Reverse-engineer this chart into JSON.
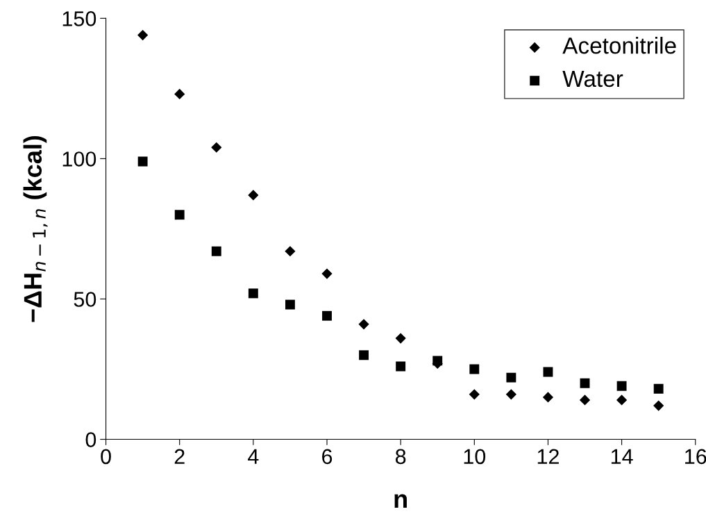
{
  "chart_data": {
    "type": "scatter",
    "xlabel": "n",
    "ylabel": "−ΔH$_{n−1,n}$ (kcal)",
    "x": [
      1,
      2,
      3,
      4,
      5,
      6,
      7,
      8,
      9,
      10,
      11,
      12,
      13,
      14,
      15
    ],
    "series": [
      {
        "name": "Acetonitrile",
        "color": "#000000",
        "marker": "diamond",
        "values": [
          144,
          123,
          104,
          87,
          67,
          59,
          41,
          36,
          27,
          16,
          16,
          15,
          14,
          14,
          12
        ]
      },
      {
        "name": "Water",
        "color": "#000000",
        "marker": "square",
        "values": [
          99,
          80,
          67,
          52,
          48,
          44,
          30,
          26,
          28,
          25,
          22,
          24,
          20,
          19,
          18
        ]
      }
    ],
    "xlim": [
      0,
      16
    ],
    "xticks": [
      0,
      2,
      4,
      6,
      8,
      10,
      12,
      14,
      16
    ],
    "ylim": [
      0,
      150
    ],
    "yticks": [
      0,
      50,
      100,
      150
    ],
    "grid": false,
    "legend": "top right"
  }
}
